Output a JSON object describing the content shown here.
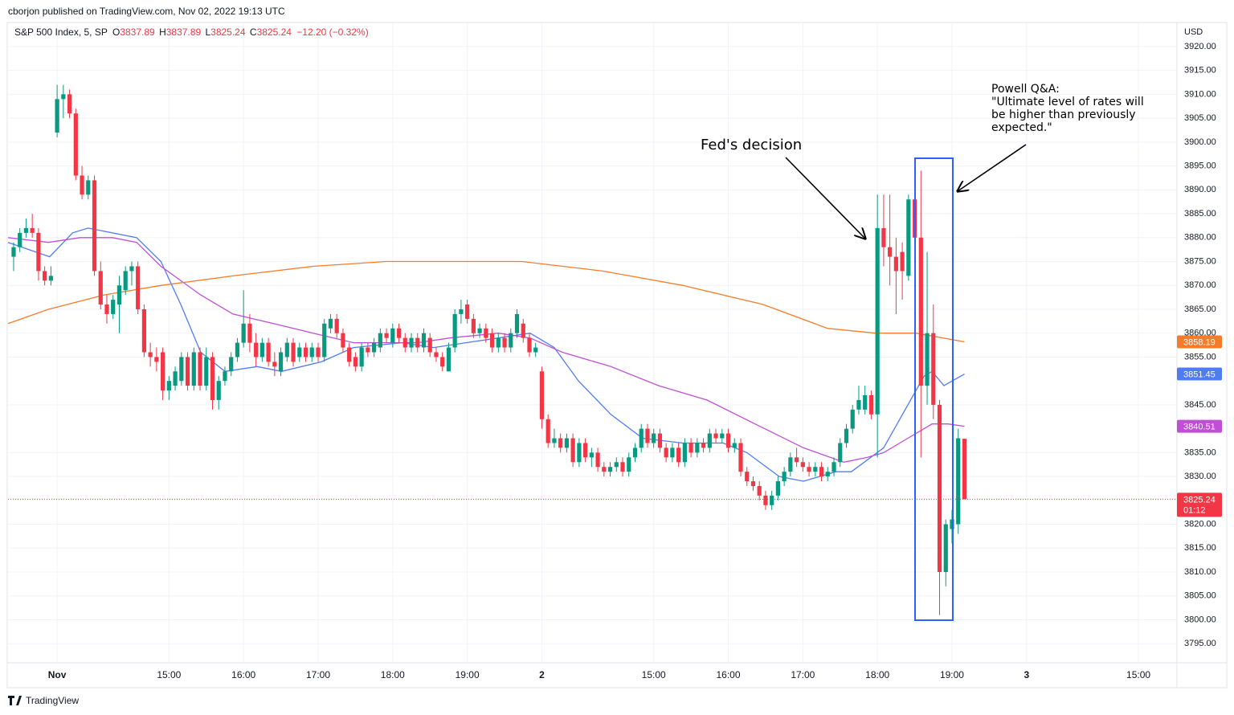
{
  "header": "cborjon published on TradingView.com, Nov 02, 2022 19:13 UTC",
  "legend": {
    "symbol": "S&P 500 Index, 5, SP",
    "ohlc": [
      {
        "label": "O",
        "value": "3837.89"
      },
      {
        "label": "H",
        "value": "3837.89"
      },
      {
        "label": "L",
        "value": "3825.24"
      },
      {
        "label": "C",
        "value": "3825.24"
      }
    ],
    "change": "−12.20 (−0.32%)"
  },
  "footer": "TradingView",
  "chart_data": {
    "type": "candlestick",
    "currency": "USD",
    "up_color": "#089981",
    "down_color": "#f23645",
    "grid": true,
    "countdown": "01:12",
    "xlim": [
      -0.9,
      187.2
    ],
    "xticks": [
      {
        "value": 7,
        "label": "Nov"
      },
      {
        "value": 25,
        "label": "15:00"
      },
      {
        "value": 37,
        "label": "16:00"
      },
      {
        "value": 49,
        "label": "17:00"
      },
      {
        "value": 61,
        "label": "18:00"
      },
      {
        "value": 73,
        "label": "19:00"
      },
      {
        "value": 85,
        "label": "2"
      },
      {
        "value": 103,
        "label": "15:00"
      },
      {
        "value": 115,
        "label": "16:00"
      },
      {
        "value": 127,
        "label": "17:00"
      },
      {
        "value": 139,
        "label": "18:00"
      },
      {
        "value": 151,
        "label": "19:00"
      },
      {
        "value": 163,
        "label": "3"
      },
      {
        "value": 181,
        "label": "15:00"
      }
    ],
    "ylim": [
      3791,
      3924.7
    ],
    "yticks": [
      {
        "value": 3795,
        "label": "3795.00"
      },
      {
        "value": 3800,
        "label": "3800.00"
      },
      {
        "value": 3805,
        "label": "3805.00"
      },
      {
        "value": 3810,
        "label": "3810.00"
      },
      {
        "value": 3815,
        "label": "3815.00"
      },
      {
        "value": 3820,
        "label": "3820.00"
      },
      {
        "value": 3830,
        "label": "3830.00"
      },
      {
        "value": 3835,
        "label": "3835.00"
      },
      {
        "value": 3845,
        "label": "3845.00"
      },
      {
        "value": 3855,
        "label": "3855.00"
      },
      {
        "value": 3860,
        "label": "3860.00"
      },
      {
        "value": 3865,
        "label": "3865.00"
      },
      {
        "value": 3870,
        "label": "3870.00"
      },
      {
        "value": 3875,
        "label": "3875.00"
      },
      {
        "value": 3880,
        "label": "3880.00"
      },
      {
        "value": 3885,
        "label": "3885.00"
      },
      {
        "value": 3890,
        "label": "3890.00"
      },
      {
        "value": 3895,
        "label": "3895.00"
      },
      {
        "value": 3900,
        "label": "3900.00"
      },
      {
        "value": 3905,
        "label": "3905.00"
      },
      {
        "value": 3910,
        "label": "3910.00"
      },
      {
        "value": 3915,
        "label": "3915.00"
      },
      {
        "value": 3920,
        "label": "3920.00"
      }
    ],
    "ohlc": [
      [
        3876,
        3879,
        3873,
        3878
      ],
      [
        3878,
        3882,
        3877,
        3881
      ],
      [
        3881,
        3884,
        3880,
        3882
      ],
      [
        3882,
        3885,
        3880,
        3881
      ],
      [
        3881,
        3882,
        3871,
        3873
      ],
      [
        3873,
        3874,
        3870,
        3871
      ],
      [
        3871,
        3874,
        3870,
        3872
      ],
      [
        3902,
        3912,
        3901,
        3909
      ],
      [
        3909,
        3912,
        3905,
        3910
      ],
      [
        3910,
        3911,
        3905,
        3906
      ],
      [
        3906,
        3907,
        3892,
        3893
      ],
      [
        3893,
        3895,
        3888,
        3889
      ],
      [
        3889,
        3893,
        3888,
        3892
      ],
      [
        3892,
        3893,
        3872,
        3873
      ],
      [
        3873,
        3875,
        3865,
        3866
      ],
      [
        3866,
        3868,
        3862,
        3864
      ],
      [
        3864,
        3868,
        3863,
        3867
      ],
      [
        3866,
        3872,
        3860,
        3870
      ],
      [
        3869,
        3874,
        3868,
        3873
      ],
      [
        3873,
        3875,
        3870,
        3874
      ],
      [
        3874,
        3875,
        3864,
        3865
      ],
      [
        3865,
        3866,
        3855,
        3856
      ],
      [
        3856,
        3858,
        3853,
        3855
      ],
      [
        3855,
        3857,
        3852,
        3854
      ],
      [
        3856,
        3857,
        3846,
        3848
      ],
      [
        3848,
        3851,
        3846,
        3850
      ],
      [
        3849,
        3853,
        3848,
        3852
      ],
      [
        3850,
        3856,
        3849,
        3855
      ],
      [
        3855,
        3856,
        3848,
        3849
      ],
      [
        3849,
        3857,
        3848,
        3856
      ],
      [
        3856,
        3857,
        3848,
        3849
      ],
      [
        3849,
        3857,
        3848,
        3855
      ],
      [
        3855,
        3856,
        3844,
        3846
      ],
      [
        3846,
        3851,
        3844,
        3850
      ],
      [
        3850,
        3853,
        3849,
        3852
      ],
      [
        3852,
        3856,
        3851,
        3855
      ],
      [
        3855,
        3859,
        3854,
        3858
      ],
      [
        3858,
        3869,
        3857,
        3862
      ],
      [
        3862,
        3864,
        3856,
        3858
      ],
      [
        3858,
        3860,
        3853,
        3855
      ],
      [
        3855,
        3859,
        3854,
        3858
      ],
      [
        3858,
        3859,
        3853,
        3854
      ],
      [
        3854,
        3856,
        3851,
        3853
      ],
      [
        3852,
        3857,
        3851,
        3856
      ],
      [
        3855,
        3859,
        3854,
        3858
      ],
      [
        3858,
        3859,
        3853,
        3854
      ],
      [
        3855,
        3858,
        3854,
        3857
      ],
      [
        3857,
        3858,
        3854,
        3855
      ],
      [
        3855,
        3858,
        3854,
        3857
      ],
      [
        3857,
        3858,
        3854,
        3855
      ],
      [
        3855,
        3863,
        3854,
        3862
      ],
      [
        3861,
        3864,
        3860,
        3863
      ],
      [
        3863,
        3864,
        3859,
        3860
      ],
      [
        3860,
        3861,
        3856,
        3857
      ],
      [
        3857,
        3858,
        3853,
        3854
      ],
      [
        3855,
        3856,
        3852,
        3853
      ],
      [
        3853,
        3858,
        3852,
        3857
      ],
      [
        3857,
        3858,
        3855,
        3856
      ],
      [
        3856,
        3859,
        3855,
        3858
      ],
      [
        3857,
        3861,
        3856,
        3860
      ],
      [
        3860,
        3861,
        3858,
        3859
      ],
      [
        3858,
        3862,
        3857,
        3861
      ],
      [
        3861,
        3862,
        3858,
        3859
      ],
      [
        3859,
        3860,
        3856,
        3857
      ],
      [
        3857,
        3860,
        3856,
        3859
      ],
      [
        3859,
        3860,
        3856,
        3857
      ],
      [
        3857,
        3861,
        3856,
        3860
      ],
      [
        3859,
        3860,
        3855,
        3856
      ],
      [
        3856,
        3857,
        3854,
        3855
      ],
      [
        3855,
        3856,
        3852,
        3853
      ],
      [
        3852,
        3858,
        3852,
        3857
      ],
      [
        3857,
        3865,
        3856,
        3864
      ],
      [
        3864,
        3867,
        3862,
        3865
      ],
      [
        3866,
        3867,
        3862,
        3863
      ],
      [
        3863,
        3864,
        3859,
        3860
      ],
      [
        3860,
        3862,
        3859,
        3861
      ],
      [
        3861,
        3862,
        3858,
        3859
      ],
      [
        3860,
        3861,
        3856,
        3857
      ],
      [
        3857,
        3860,
        3856,
        3859
      ],
      [
        3859,
        3860,
        3856,
        3857
      ],
      [
        3857,
        3861,
        3856,
        3860
      ],
      [
        3860,
        3865,
        3859,
        3864
      ],
      [
        3862,
        3863,
        3858,
        3859
      ],
      [
        3859,
        3860,
        3855,
        3856
      ],
      [
        3856,
        3858,
        3855,
        3857
      ],
      [
        3852,
        3853,
        3840,
        3842
      ],
      [
        3842,
        3843,
        3836,
        3837
      ],
      [
        3837,
        3840,
        3836,
        3838
      ],
      [
        3838,
        3839,
        3835,
        3836
      ],
      [
        3836,
        3839,
        3835,
        3838
      ],
      [
        3838,
        3839,
        3832,
        3833
      ],
      [
        3833,
        3838,
        3832,
        3837
      ],
      [
        3837,
        3838,
        3833,
        3834
      ],
      [
        3834,
        3836,
        3832,
        3835
      ],
      [
        3835,
        3836,
        3831,
        3832
      ],
      [
        3832,
        3833,
        3830,
        3831
      ],
      [
        3831,
        3833,
        3830,
        3832
      ],
      [
        3832,
        3834,
        3831,
        3833
      ],
      [
        3833,
        3834,
        3830,
        3831
      ],
      [
        3831,
        3835,
        3830,
        3834
      ],
      [
        3834,
        3837,
        3833,
        3836
      ],
      [
        3836,
        3841,
        3835,
        3840
      ],
      [
        3840,
        3841,
        3836,
        3837
      ],
      [
        3837,
        3840,
        3836,
        3839
      ],
      [
        3839,
        3840,
        3835,
        3836
      ],
      [
        3836,
        3837,
        3833,
        3834
      ],
      [
        3834,
        3837,
        3833,
        3836
      ],
      [
        3836,
        3837,
        3832,
        3833
      ],
      [
        3833,
        3838,
        3832,
        3837
      ],
      [
        3837,
        3838,
        3834,
        3835
      ],
      [
        3835,
        3838,
        3834,
        3837
      ],
      [
        3837,
        3838,
        3835,
        3836
      ],
      [
        3836,
        3840,
        3835,
        3839
      ],
      [
        3839,
        3840,
        3837,
        3838
      ],
      [
        3838,
        3840,
        3837,
        3839
      ],
      [
        3839,
        3840,
        3835,
        3836
      ],
      [
        3836,
        3838,
        3835,
        3837
      ],
      [
        3837,
        3838,
        3830,
        3831
      ],
      [
        3831,
        3832,
        3828,
        3829
      ],
      [
        3829,
        3830,
        3827,
        3828
      ],
      [
        3828,
        3829,
        3825,
        3826
      ],
      [
        3826,
        3827,
        3823,
        3824
      ],
      [
        3824,
        3827,
        3823,
        3826
      ],
      [
        3826,
        3830,
        3825,
        3829
      ],
      [
        3829,
        3832,
        3828,
        3831
      ],
      [
        3831,
        3835,
        3830,
        3834
      ],
      [
        3834,
        3836,
        3832,
        3833
      ],
      [
        3833,
        3834,
        3831,
        3832
      ],
      [
        3832,
        3833,
        3830,
        3831
      ],
      [
        3831,
        3833,
        3830,
        3832
      ],
      [
        3832,
        3833,
        3829,
        3830
      ],
      [
        3830,
        3832,
        3829,
        3831
      ],
      [
        3831,
        3834,
        3830,
        3833
      ],
      [
        3833,
        3838,
        3832,
        3837
      ],
      [
        3837,
        3841,
        3836,
        3840
      ],
      [
        3840,
        3845,
        3839,
        3844
      ],
      [
        3844,
        3849,
        3843,
        3846
      ],
      [
        3844,
        3849,
        3843,
        3847
      ],
      [
        3847,
        3848,
        3842,
        3843
      ],
      [
        3843,
        3889,
        3834,
        3882
      ],
      [
        3882,
        3889,
        3874,
        3878
      ],
      [
        3878,
        3889,
        3870,
        3876
      ],
      [
        3876,
        3880,
        3864,
        3873
      ],
      [
        3877,
        3879,
        3867,
        3873
      ],
      [
        3872,
        3889,
        3871,
        3888
      ],
      [
        3888,
        3890,
        3878,
        3880
      ],
      [
        3880,
        3894,
        3834,
        3849
      ],
      [
        3849,
        3877,
        3845,
        3860
      ],
      [
        3860,
        3866,
        3842,
        3845
      ],
      [
        3845,
        3846,
        3801,
        3810
      ],
      [
        3810,
        3821,
        3807,
        3820
      ],
      [
        3819,
        3823,
        3816,
        3821
      ],
      [
        3820,
        3840,
        3818,
        3838
      ],
      [
        3837.89,
        3837.89,
        3825.24,
        3825.24
      ]
    ],
    "series": [
      {
        "color": "#4f7cf3",
        "x": [
          -0.9,
          5.8,
          9.5,
          12,
          19.8,
          23.7,
          26.9,
          30.1,
          34,
          39.2,
          43.1,
          49.5,
          54.7,
          62.5,
          67.6,
          72.8,
          78,
          83.1,
          87,
          90.9,
          96.1,
          101.2,
          107.7,
          114.2,
          118,
          123.2,
          127.1,
          132.3,
          134.8,
          140,
          143.9,
          146.5,
          147.8,
          149.7,
          153
        ],
        "values": [
          3879,
          3876,
          3881,
          3882,
          3880,
          3875,
          3866,
          3856,
          3852,
          3853,
          3852,
          3854,
          3857,
          3858,
          3857,
          3858,
          3859,
          3860,
          3857,
          3850,
          3843,
          3838,
          3837,
          3837,
          3835,
          3830,
          3829,
          3831,
          3831,
          3836,
          3845,
          3851,
          3852,
          3849,
          3851.45
        ]
      },
      {
        "color": "#c04fd6",
        "x": [
          -0.9,
          5.6,
          10.7,
          15.9,
          19.8,
          23.7,
          30.1,
          35.3,
          41.8,
          48.2,
          54.7,
          59.9,
          65,
          70.2,
          78,
          83.1,
          88.3,
          96.1,
          103.8,
          111.6,
          119.3,
          127.1,
          133.6,
          137.4,
          140,
          143.9,
          147.8,
          150.4,
          153
        ],
        "values": [
          3880,
          3879,
          3880,
          3880,
          3879,
          3874,
          3868,
          3864,
          3862,
          3860,
          3858,
          3858,
          3858,
          3859,
          3860,
          3859,
          3856,
          3853,
          3849,
          3846,
          3841,
          3836,
          3833,
          3834,
          3835,
          3838,
          3841,
          3841,
          3840.51
        ]
      },
      {
        "color": "#f57c2a",
        "x": [
          -0.9,
          5.6,
          14.6,
          23.7,
          35.3,
          48.2,
          59.9,
          70.2,
          81.8,
          94.8,
          107.7,
          120.6,
          131,
          138.7,
          145.2,
          153
        ],
        "values": [
          3862,
          3865,
          3868,
          3870,
          3872,
          3874,
          3875,
          3875,
          3875,
          3873,
          3870,
          3866,
          3861,
          3860,
          3860,
          3858.19
        ]
      }
    ],
    "annotations": {
      "fed": "Fed's decision",
      "powell": [
        "Powell Q&A:",
        "\"Ultimate level of rates will",
        "be higher than previously",
        "expected.\""
      ]
    }
  }
}
